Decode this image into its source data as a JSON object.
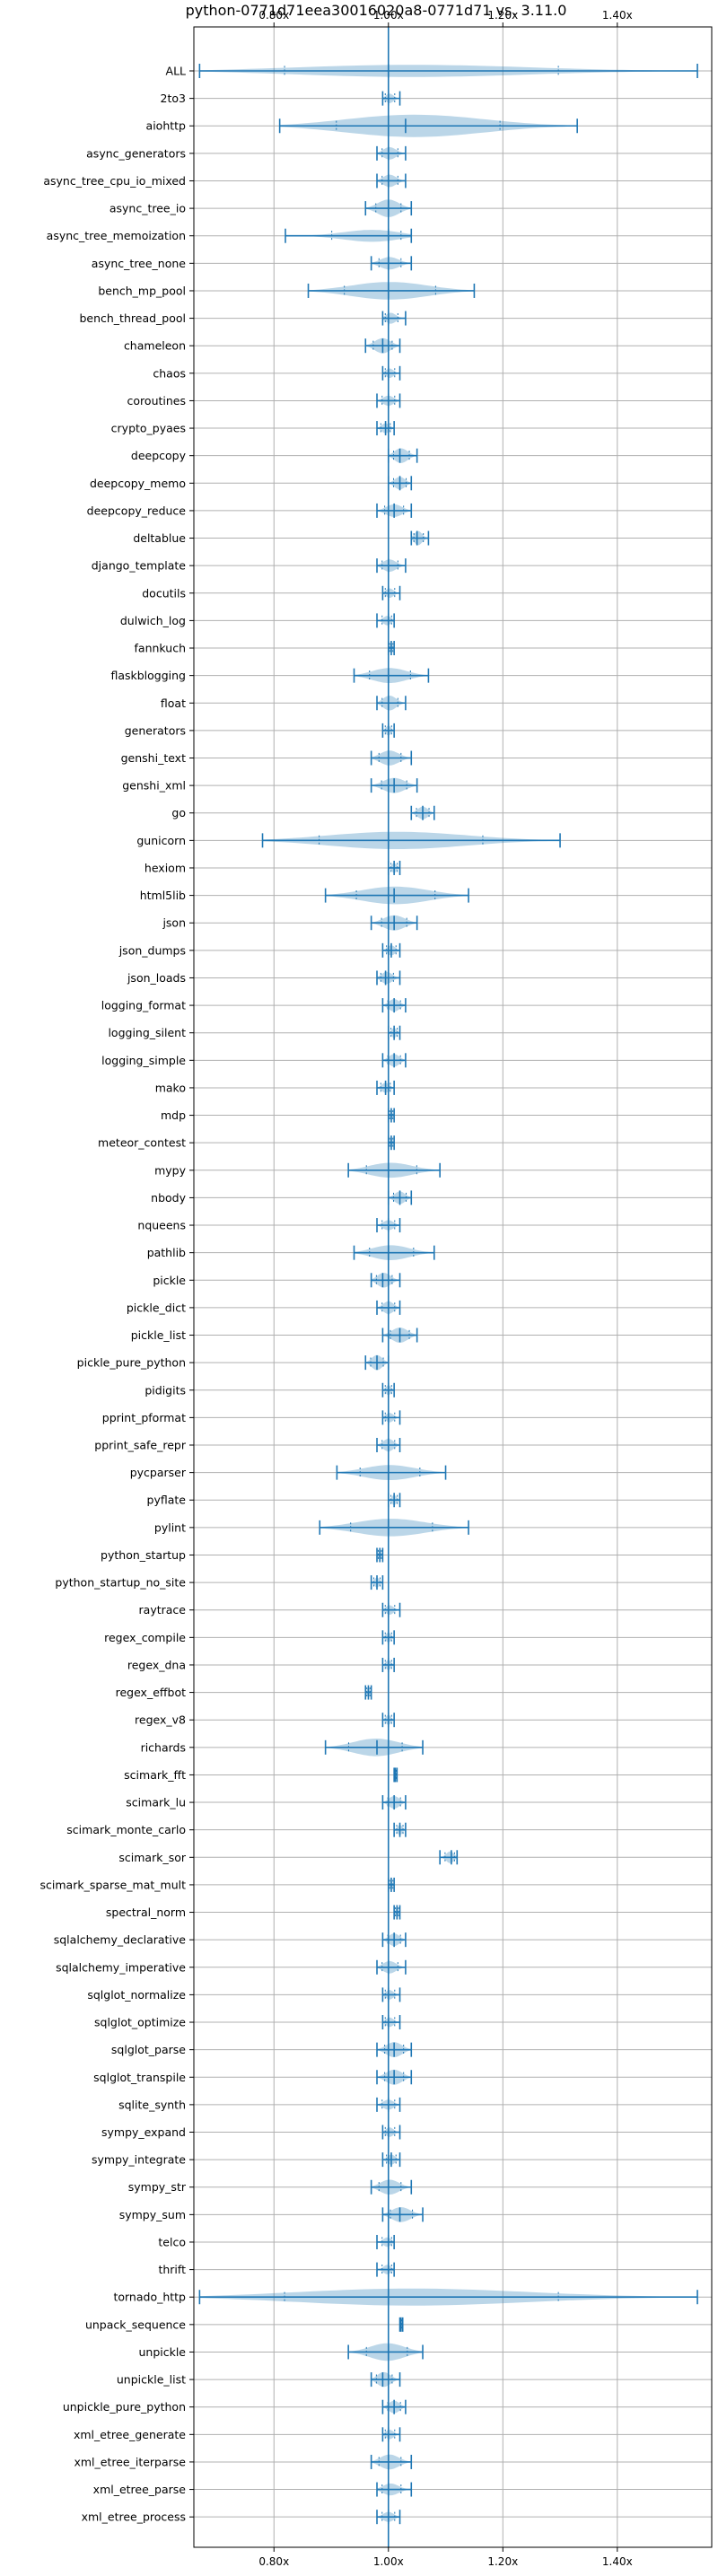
{
  "chart_data": {
    "type": "violin",
    "title": "python-0771d71eea30016020a8-0771d71 vs. 3.11.0",
    "xlim": [
      0.66,
      1.565
    ],
    "x_ticks": [
      0.8,
      1.0,
      1.2,
      1.4
    ],
    "x_tick_labels": [
      "0.80x",
      "1.00x",
      "1.20x",
      "1.40x"
    ],
    "reference_x": 1.0,
    "grid": true,
    "colors": {
      "violin": "#1f77b4",
      "grid": "#b0b0b0"
    },
    "benchmarks": [
      {
        "name": "ALL",
        "min": 0.67,
        "max": 1.54,
        "median": 1.0,
        "width": 0.5
      },
      {
        "name": "2to3",
        "min": 0.99,
        "max": 1.02,
        "median": 1.0,
        "width": 0.4
      },
      {
        "name": "aiohttp",
        "min": 0.81,
        "max": 1.33,
        "median": 1.03,
        "width": 0.9
      },
      {
        "name": "async_generators",
        "min": 0.98,
        "max": 1.03,
        "median": 1.0,
        "width": 0.5
      },
      {
        "name": "async_tree_cpu_io_mixed",
        "min": 0.98,
        "max": 1.03,
        "median": 1.0,
        "width": 0.5
      },
      {
        "name": "async_tree_io",
        "min": 0.96,
        "max": 1.04,
        "median": 1.0,
        "width": 0.7
      },
      {
        "name": "async_tree_memoization",
        "min": 0.82,
        "max": 1.04,
        "median": 1.0,
        "width": 0.6
      },
      {
        "name": "async_tree_none",
        "min": 0.97,
        "max": 1.04,
        "median": 1.0,
        "width": 0.5
      },
      {
        "name": "bench_mp_pool",
        "min": 0.86,
        "max": 1.15,
        "median": 1.0,
        "width": 0.7
      },
      {
        "name": "bench_thread_pool",
        "min": 0.99,
        "max": 1.03,
        "median": 1.0,
        "width": 0.5
      },
      {
        "name": "chameleon",
        "min": 0.96,
        "max": 1.02,
        "median": 0.99,
        "width": 0.6
      },
      {
        "name": "chaos",
        "min": 0.99,
        "max": 1.02,
        "median": 1.0,
        "width": 0.4
      },
      {
        "name": "coroutines",
        "min": 0.98,
        "max": 1.02,
        "median": 1.0,
        "width": 0.4
      },
      {
        "name": "crypto_pyaes",
        "min": 0.98,
        "max": 1.01,
        "median": 0.995,
        "width": 0.4
      },
      {
        "name": "deepcopy",
        "min": 1.0,
        "max": 1.05,
        "median": 1.02,
        "width": 0.6
      },
      {
        "name": "deepcopy_memo",
        "min": 1.0,
        "max": 1.04,
        "median": 1.02,
        "width": 0.5
      },
      {
        "name": "deepcopy_reduce",
        "min": 0.98,
        "max": 1.04,
        "median": 1.01,
        "width": 0.5
      },
      {
        "name": "deltablue",
        "min": 1.04,
        "max": 1.07,
        "median": 1.05,
        "width": 0.6
      },
      {
        "name": "django_template",
        "min": 0.98,
        "max": 1.03,
        "median": 1.0,
        "width": 0.5
      },
      {
        "name": "docutils",
        "min": 0.99,
        "max": 1.02,
        "median": 1.0,
        "width": 0.4
      },
      {
        "name": "dulwich_log",
        "min": 0.98,
        "max": 1.01,
        "median": 1.0,
        "width": 0.4
      },
      {
        "name": "fannkuch",
        "min": 1.0,
        "max": 1.01,
        "median": 1.005,
        "width": 0.4
      },
      {
        "name": "flaskblogging",
        "min": 0.94,
        "max": 1.07,
        "median": 1.0,
        "width": 0.6
      },
      {
        "name": "float",
        "min": 0.98,
        "max": 1.03,
        "median": 1.0,
        "width": 0.6
      },
      {
        "name": "generators",
        "min": 0.99,
        "max": 1.01,
        "median": 1.0,
        "width": 0.4
      },
      {
        "name": "genshi_text",
        "min": 0.97,
        "max": 1.04,
        "median": 1.0,
        "width": 0.6
      },
      {
        "name": "genshi_xml",
        "min": 0.97,
        "max": 1.05,
        "median": 1.01,
        "width": 0.6
      },
      {
        "name": "go",
        "min": 1.04,
        "max": 1.08,
        "median": 1.06,
        "width": 0.5
      },
      {
        "name": "gunicorn",
        "min": 0.78,
        "max": 1.3,
        "median": 1.0,
        "width": 0.7
      },
      {
        "name": "hexiom",
        "min": 1.0,
        "max": 1.02,
        "median": 1.01,
        "width": 0.4
      },
      {
        "name": "html5lib",
        "min": 0.89,
        "max": 1.14,
        "median": 1.01,
        "width": 0.7
      },
      {
        "name": "json",
        "min": 0.97,
        "max": 1.05,
        "median": 1.01,
        "width": 0.6
      },
      {
        "name": "json_dumps",
        "min": 0.99,
        "max": 1.02,
        "median": 1.005,
        "width": 0.4
      },
      {
        "name": "json_loads",
        "min": 0.98,
        "max": 1.02,
        "median": 0.995,
        "width": 0.5
      },
      {
        "name": "logging_format",
        "min": 0.99,
        "max": 1.03,
        "median": 1.01,
        "width": 0.5
      },
      {
        "name": "logging_silent",
        "min": 1.0,
        "max": 1.02,
        "median": 1.01,
        "width": 0.4
      },
      {
        "name": "logging_simple",
        "min": 0.99,
        "max": 1.03,
        "median": 1.01,
        "width": 0.5
      },
      {
        "name": "mako",
        "min": 0.98,
        "max": 1.01,
        "median": 0.995,
        "width": 0.4
      },
      {
        "name": "mdp",
        "min": 1.0,
        "max": 1.01,
        "median": 1.005,
        "width": 0.4
      },
      {
        "name": "meteor_contest",
        "min": 1.0,
        "max": 1.01,
        "median": 1.005,
        "width": 0.4
      },
      {
        "name": "mypy",
        "min": 0.93,
        "max": 1.09,
        "median": 1.0,
        "width": 0.6
      },
      {
        "name": "nbody",
        "min": 1.0,
        "max": 1.04,
        "median": 1.02,
        "width": 0.5
      },
      {
        "name": "nqueens",
        "min": 0.98,
        "max": 1.02,
        "median": 1.0,
        "width": 0.4
      },
      {
        "name": "pathlib",
        "min": 0.94,
        "max": 1.08,
        "median": 1.0,
        "width": 0.6
      },
      {
        "name": "pickle",
        "min": 0.97,
        "max": 1.02,
        "median": 0.99,
        "width": 0.6
      },
      {
        "name": "pickle_dict",
        "min": 0.98,
        "max": 1.02,
        "median": 1.0,
        "width": 0.5
      },
      {
        "name": "pickle_list",
        "min": 0.99,
        "max": 1.05,
        "median": 1.02,
        "width": 0.6
      },
      {
        "name": "pickle_pure_python",
        "min": 0.96,
        "max": 1.0,
        "median": 0.98,
        "width": 0.6
      },
      {
        "name": "pidigits",
        "min": 0.99,
        "max": 1.01,
        "median": 1.0,
        "width": 0.4
      },
      {
        "name": "pprint_pformat",
        "min": 0.99,
        "max": 1.02,
        "median": 1.0,
        "width": 0.4
      },
      {
        "name": "pprint_safe_repr",
        "min": 0.98,
        "max": 1.02,
        "median": 1.0,
        "width": 0.5
      },
      {
        "name": "pycparser",
        "min": 0.91,
        "max": 1.1,
        "median": 1.0,
        "width": 0.6
      },
      {
        "name": "pyflate",
        "min": 1.0,
        "max": 1.02,
        "median": 1.01,
        "width": 0.4
      },
      {
        "name": "pylint",
        "min": 0.88,
        "max": 1.14,
        "median": 1.0,
        "width": 0.7
      },
      {
        "name": "python_startup",
        "min": 0.98,
        "max": 0.99,
        "median": 0.985,
        "width": 0.4
      },
      {
        "name": "python_startup_no_site",
        "min": 0.97,
        "max": 0.99,
        "median": 0.98,
        "width": 0.4
      },
      {
        "name": "raytrace",
        "min": 0.99,
        "max": 1.02,
        "median": 1.0,
        "width": 0.4
      },
      {
        "name": "regex_compile",
        "min": 0.99,
        "max": 1.01,
        "median": 1.0,
        "width": 0.4
      },
      {
        "name": "regex_dna",
        "min": 0.99,
        "max": 1.01,
        "median": 1.0,
        "width": 0.4
      },
      {
        "name": "regex_effbot",
        "min": 0.96,
        "max": 0.97,
        "median": 0.965,
        "width": 0.4
      },
      {
        "name": "regex_v8",
        "min": 0.99,
        "max": 1.01,
        "median": 1.0,
        "width": 0.4
      },
      {
        "name": "richards",
        "min": 0.89,
        "max": 1.06,
        "median": 0.98,
        "width": 0.7
      },
      {
        "name": "scimark_fft",
        "min": 1.01,
        "max": 1.015,
        "median": 1.012,
        "width": 0.3
      },
      {
        "name": "scimark_lu",
        "min": 0.99,
        "max": 1.03,
        "median": 1.01,
        "width": 0.5
      },
      {
        "name": "scimark_monte_carlo",
        "min": 1.01,
        "max": 1.03,
        "median": 1.02,
        "width": 0.4
      },
      {
        "name": "scimark_sor",
        "min": 1.09,
        "max": 1.12,
        "median": 1.11,
        "width": 0.5
      },
      {
        "name": "scimark_sparse_mat_mult",
        "min": 1.0,
        "max": 1.01,
        "median": 1.005,
        "width": 0.3
      },
      {
        "name": "spectral_norm",
        "min": 1.01,
        "max": 1.02,
        "median": 1.015,
        "width": 0.4
      },
      {
        "name": "sqlalchemy_declarative",
        "min": 0.99,
        "max": 1.03,
        "median": 1.01,
        "width": 0.5
      },
      {
        "name": "sqlalchemy_imperative",
        "min": 0.98,
        "max": 1.03,
        "median": 1.0,
        "width": 0.5
      },
      {
        "name": "sqlglot_normalize",
        "min": 0.99,
        "max": 1.02,
        "median": 1.0,
        "width": 0.4
      },
      {
        "name": "sqlglot_optimize",
        "min": 0.99,
        "max": 1.02,
        "median": 1.0,
        "width": 0.4
      },
      {
        "name": "sqlglot_parse",
        "min": 0.98,
        "max": 1.04,
        "median": 1.01,
        "width": 0.6
      },
      {
        "name": "sqlglot_transpile",
        "min": 0.98,
        "max": 1.04,
        "median": 1.01,
        "width": 0.6
      },
      {
        "name": "sqlite_synth",
        "min": 0.98,
        "max": 1.02,
        "median": 1.0,
        "width": 0.4
      },
      {
        "name": "sympy_expand",
        "min": 0.99,
        "max": 1.02,
        "median": 1.0,
        "width": 0.4
      },
      {
        "name": "sympy_integrate",
        "min": 0.99,
        "max": 1.02,
        "median": 1.005,
        "width": 0.4
      },
      {
        "name": "sympy_str",
        "min": 0.97,
        "max": 1.04,
        "median": 1.0,
        "width": 0.6
      },
      {
        "name": "sympy_sum",
        "min": 0.99,
        "max": 1.06,
        "median": 1.02,
        "width": 0.6
      },
      {
        "name": "telco",
        "min": 0.98,
        "max": 1.01,
        "median": 1.0,
        "width": 0.4
      },
      {
        "name": "thrift",
        "min": 0.98,
        "max": 1.01,
        "median": 1.0,
        "width": 0.4
      },
      {
        "name": "tornado_http",
        "min": 0.67,
        "max": 1.54,
        "median": 1.0,
        "width": 0.7
      },
      {
        "name": "unpack_sequence",
        "min": 1.02,
        "max": 1.025,
        "median": 1.022,
        "width": 0.3
      },
      {
        "name": "unpickle",
        "min": 0.93,
        "max": 1.06,
        "median": 1.0,
        "width": 0.7
      },
      {
        "name": "unpickle_list",
        "min": 0.97,
        "max": 1.02,
        "median": 0.99,
        "width": 0.6
      },
      {
        "name": "unpickle_pure_python",
        "min": 0.99,
        "max": 1.03,
        "median": 1.01,
        "width": 0.5
      },
      {
        "name": "xml_etree_generate",
        "min": 0.99,
        "max": 1.02,
        "median": 1.0,
        "width": 0.4
      },
      {
        "name": "xml_etree_iterparse",
        "min": 0.97,
        "max": 1.04,
        "median": 1.0,
        "width": 0.6
      },
      {
        "name": "xml_etree_parse",
        "min": 0.98,
        "max": 1.04,
        "median": 1.0,
        "width": 0.5
      },
      {
        "name": "xml_etree_process",
        "min": 0.98,
        "max": 1.02,
        "median": 1.0,
        "width": 0.4
      }
    ]
  }
}
